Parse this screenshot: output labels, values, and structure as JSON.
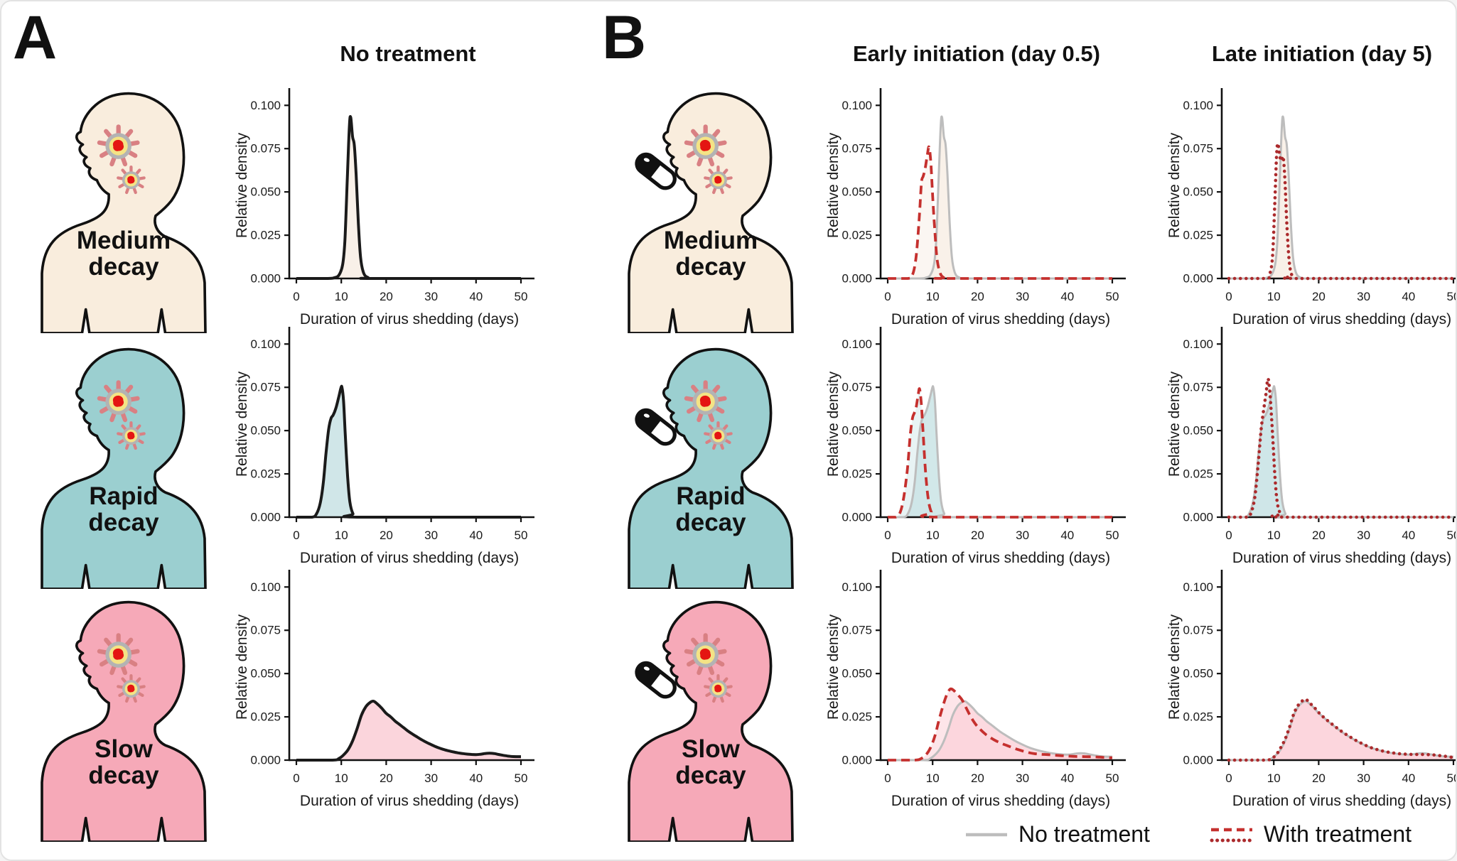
{
  "panels": {
    "a": {
      "label": "A",
      "column_title": "No treatment"
    },
    "b": {
      "label": "B",
      "column_titles": [
        "Early initiation (day 0.5)",
        "Late initiation (day 5)"
      ]
    }
  },
  "rows": [
    {
      "key": "medium",
      "label_line1": "Medium",
      "label_line2": "decay",
      "body_color": "#f9eddd",
      "chart_fill": "#f8efe7"
    },
    {
      "key": "rapid",
      "label_line1": "Rapid",
      "label_line2": "decay",
      "body_color": "#9bcfd0",
      "chart_fill": "#cde5e7"
    },
    {
      "key": "slow",
      "label_line1": "Slow",
      "label_line2": "decay",
      "body_color": "#f6a9b8",
      "chart_fill": "#fbd3da"
    }
  ],
  "legend": {
    "no_treatment": "No treatment",
    "with_treatment": "With treatment"
  },
  "colors": {
    "black": "#1a1a1a",
    "gray": "#bdbdbd",
    "red": "#c5302e",
    "red_dark": "#ab2a2c",
    "outline": "#111111"
  },
  "icons": {
    "virus": "virus-icon",
    "pill": "pill-capsule-icon",
    "colors": {
      "spike": "#d98083",
      "ring": "#b3b3b3",
      "capsid": "#f4e385",
      "core": "#e41512",
      "pill_dark": "#111111",
      "pill_light": "#ffffff"
    }
  },
  "chart_data": {
    "type": "area",
    "xlabel": "Duration of virus shedding (days)",
    "ylabel": "Relative density",
    "xlim": [
      0,
      50
    ],
    "ylim": [
      0,
      0.1
    ],
    "xtick_values": [
      0,
      10,
      20,
      30,
      40,
      50
    ],
    "xtick_labels": [
      "0",
      "10",
      "20",
      "30",
      "40",
      "50"
    ],
    "ytick_values": [
      0,
      0.025,
      0.05,
      0.075,
      0.1
    ],
    "ytick_labels": [
      "0.000",
      "0.025",
      "0.050",
      "0.075",
      "0.100"
    ],
    "grid": false,
    "legend_position": "bottom-right",
    "line_styles": {
      "black-solid": {
        "color": "#1a1a1a",
        "width": 4
      },
      "gray-solid": {
        "color": "#bdbdbd",
        "width": 3
      },
      "red-dashed": {
        "color": "#c5302e",
        "width": 3.8,
        "dash": "12 7"
      },
      "red-dotted": {
        "color": "#ab2a2c",
        "width": 4.6,
        "dash": "0.1 8",
        "cap": "round"
      }
    },
    "curves": {
      "medium_no_treatment": [
        [
          0,
          0
        ],
        [
          7,
          0
        ],
        [
          8.5,
          0.0005
        ],
        [
          9.5,
          0.002
        ],
        [
          10.3,
          0.008
        ],
        [
          10.8,
          0.022
        ],
        [
          11.3,
          0.055
        ],
        [
          11.8,
          0.088
        ],
        [
          12.1,
          0.093
        ],
        [
          12.5,
          0.082
        ],
        [
          12.9,
          0.077
        ],
        [
          13.3,
          0.06
        ],
        [
          13.8,
          0.032
        ],
        [
          14.3,
          0.012
        ],
        [
          15,
          0.003
        ],
        [
          16,
          0.0005
        ],
        [
          17,
          0
        ],
        [
          50,
          0
        ]
      ],
      "medium_early_treatment": [
        [
          0,
          0
        ],
        [
          4.5,
          0
        ],
        [
          5.5,
          0.002
        ],
        [
          6.3,
          0.012
        ],
        [
          7,
          0.034
        ],
        [
          7.5,
          0.055
        ],
        [
          7.9,
          0.059
        ],
        [
          8.3,
          0.063
        ],
        [
          8.8,
          0.071
        ],
        [
          9.2,
          0.076
        ],
        [
          9.6,
          0.067
        ],
        [
          10,
          0.048
        ],
        [
          10.5,
          0.027
        ],
        [
          11,
          0.011
        ],
        [
          11.7,
          0.003
        ],
        [
          12.5,
          0.0005
        ],
        [
          13.5,
          0
        ],
        [
          50,
          0
        ]
      ],
      "medium_late_treatment": [
        [
          0,
          0
        ],
        [
          8,
          0
        ],
        [
          9,
          0.002
        ],
        [
          9.7,
          0.012
        ],
        [
          10.2,
          0.042
        ],
        [
          10.6,
          0.07
        ],
        [
          10.9,
          0.078
        ],
        [
          11.3,
          0.071
        ],
        [
          11.7,
          0.068
        ],
        [
          12.1,
          0.07
        ],
        [
          12.5,
          0.056
        ],
        [
          12.9,
          0.032
        ],
        [
          13.4,
          0.011
        ],
        [
          14,
          0.002
        ],
        [
          15,
          0
        ],
        [
          50,
          0
        ]
      ],
      "rapid_no_treatment": [
        [
          0,
          0
        ],
        [
          3.5,
          0
        ],
        [
          4.5,
          0.002
        ],
        [
          5.3,
          0.008
        ],
        [
          6,
          0.02
        ],
        [
          6.6,
          0.037
        ],
        [
          7.2,
          0.051
        ],
        [
          7.7,
          0.057
        ],
        [
          8.2,
          0.059
        ],
        [
          8.8,
          0.063
        ],
        [
          9.4,
          0.069
        ],
        [
          9.9,
          0.0745
        ],
        [
          10.15,
          0.075
        ],
        [
          10.5,
          0.067
        ],
        [
          10.9,
          0.047
        ],
        [
          11.4,
          0.024
        ],
        [
          11.9,
          0.009
        ],
        [
          12.6,
          0.002
        ],
        [
          13.5,
          0
        ],
        [
          50,
          0
        ]
      ],
      "rapid_early_treatment": [
        [
          0,
          0
        ],
        [
          1.8,
          0
        ],
        [
          2.8,
          0.003
        ],
        [
          3.6,
          0.012
        ],
        [
          4.4,
          0.028
        ],
        [
          5,
          0.047
        ],
        [
          5.5,
          0.057
        ],
        [
          5.9,
          0.06
        ],
        [
          6.3,
          0.063
        ],
        [
          6.8,
          0.071
        ],
        [
          7.1,
          0.074
        ],
        [
          7.5,
          0.065
        ],
        [
          7.9,
          0.048
        ],
        [
          8.4,
          0.027
        ],
        [
          9,
          0.011
        ],
        [
          9.7,
          0.003
        ],
        [
          10.7,
          0
        ],
        [
          50,
          0
        ]
      ],
      "rapid_late_treatment": [
        [
          0,
          0
        ],
        [
          4,
          0
        ],
        [
          5,
          0.003
        ],
        [
          5.8,
          0.012
        ],
        [
          6.5,
          0.03
        ],
        [
          7.2,
          0.051
        ],
        [
          7.8,
          0.063
        ],
        [
          8.3,
          0.072
        ],
        [
          8.7,
          0.08
        ],
        [
          9.1,
          0.073
        ],
        [
          9.5,
          0.058
        ],
        [
          9.9,
          0.04
        ],
        [
          10.3,
          0.022
        ],
        [
          10.8,
          0.008
        ],
        [
          11.5,
          0.002
        ],
        [
          12.5,
          0
        ],
        [
          50,
          0
        ]
      ],
      "slow_no_treatment": [
        [
          0,
          0
        ],
        [
          8,
          0
        ],
        [
          9.5,
          0.001
        ],
        [
          10.5,
          0.003
        ],
        [
          11.5,
          0.006
        ],
        [
          12.5,
          0.011
        ],
        [
          13.5,
          0.018
        ],
        [
          14.5,
          0.026
        ],
        [
          15.5,
          0.031
        ],
        [
          16.5,
          0.0335
        ],
        [
          17.2,
          0.034
        ],
        [
          18,
          0.0325
        ],
        [
          19,
          0.03
        ],
        [
          20,
          0.027
        ],
        [
          21,
          0.025
        ],
        [
          22,
          0.0225
        ],
        [
          23,
          0.0205
        ],
        [
          24,
          0.0185
        ],
        [
          25,
          0.0165
        ],
        [
          26,
          0.0148
        ],
        [
          27,
          0.0132
        ],
        [
          28,
          0.0116
        ],
        [
          29,
          0.0102
        ],
        [
          30,
          0.009
        ],
        [
          31,
          0.0078
        ],
        [
          32,
          0.0068
        ],
        [
          33,
          0.006
        ],
        [
          34,
          0.0053
        ],
        [
          35,
          0.0047
        ],
        [
          36,
          0.0042
        ],
        [
          37,
          0.0038
        ],
        [
          38,
          0.0035
        ],
        [
          39,
          0.0033
        ],
        [
          40,
          0.0032
        ],
        [
          41,
          0.0034
        ],
        [
          42,
          0.0038
        ],
        [
          43,
          0.004
        ],
        [
          44,
          0.0038
        ],
        [
          45,
          0.0033
        ],
        [
          46,
          0.0028
        ],
        [
          47,
          0.0024
        ],
        [
          48,
          0.0021
        ],
        [
          49,
          0.002
        ],
        [
          50,
          0.002
        ]
      ],
      "slow_early_treatment": [
        [
          0,
          0
        ],
        [
          6,
          0
        ],
        [
          7.5,
          0.001
        ],
        [
          8.5,
          0.003
        ],
        [
          9.5,
          0.007
        ],
        [
          10.5,
          0.014
        ],
        [
          11.5,
          0.024
        ],
        [
          12.5,
          0.033
        ],
        [
          13.2,
          0.038
        ],
        [
          13.9,
          0.041
        ],
        [
          14.6,
          0.0405
        ],
        [
          15.5,
          0.038
        ],
        [
          16.5,
          0.035
        ],
        [
          17.5,
          0.03
        ],
        [
          18.5,
          0.025
        ],
        [
          19.5,
          0.021
        ],
        [
          20.5,
          0.018
        ],
        [
          22,
          0.0145
        ],
        [
          23.5,
          0.012
        ],
        [
          25,
          0.01
        ],
        [
          26.5,
          0.0085
        ],
        [
          28,
          0.007
        ],
        [
          29.5,
          0.0057
        ],
        [
          31,
          0.0046
        ],
        [
          32.5,
          0.0038
        ],
        [
          34,
          0.0034
        ],
        [
          35.5,
          0.0032
        ],
        [
          37,
          0.0029
        ],
        [
          38.5,
          0.0026
        ],
        [
          40,
          0.0024
        ],
        [
          42,
          0.0021
        ],
        [
          44,
          0.002
        ],
        [
          46,
          0.0019
        ],
        [
          48,
          0.0016
        ],
        [
          50,
          0.0013
        ]
      ],
      "slow_late_treatment": [
        [
          0,
          0
        ],
        [
          8,
          0
        ],
        [
          9.5,
          0.001
        ],
        [
          10.5,
          0.003
        ],
        [
          11.5,
          0.007
        ],
        [
          12.5,
          0.012
        ],
        [
          13.5,
          0.019
        ],
        [
          14.5,
          0.027
        ],
        [
          15.5,
          0.032
        ],
        [
          16.5,
          0.0345
        ],
        [
          17.2,
          0.035
        ],
        [
          18,
          0.033
        ],
        [
          19,
          0.0305
        ],
        [
          20,
          0.0275
        ],
        [
          21,
          0.025
        ],
        [
          22,
          0.0228
        ],
        [
          23,
          0.0207
        ],
        [
          24,
          0.0187
        ],
        [
          25,
          0.0168
        ],
        [
          26,
          0.015
        ],
        [
          27,
          0.0134
        ],
        [
          28,
          0.0118
        ],
        [
          29,
          0.0104
        ],
        [
          30,
          0.0091
        ],
        [
          31,
          0.0079
        ],
        [
          32,
          0.0069
        ],
        [
          33,
          0.0061
        ],
        [
          34,
          0.0054
        ],
        [
          35,
          0.0048
        ],
        [
          36,
          0.0044
        ],
        [
          37,
          0.004
        ],
        [
          38,
          0.0037
        ],
        [
          39,
          0.0035
        ],
        [
          40,
          0.0034
        ],
        [
          41,
          0.0033
        ],
        [
          42,
          0.0033
        ],
        [
          43,
          0.0033
        ],
        [
          44,
          0.0032
        ],
        [
          45,
          0.0031
        ],
        [
          46,
          0.0029
        ],
        [
          47,
          0.0026
        ],
        [
          48,
          0.0023
        ],
        [
          49,
          0.0019
        ],
        [
          50,
          0.0015
        ]
      ]
    },
    "charts": [
      {
        "id": "medium-none",
        "panel": "A",
        "row": "Medium decay",
        "column": "No treatment",
        "series": [
          {
            "name": "No treatment",
            "curve": "medium_no_treatment",
            "style": "black-solid",
            "fill": "#f8efe7",
            "fill_opacity": 0.95
          }
        ]
      },
      {
        "id": "rapid-none",
        "panel": "A",
        "row": "Rapid decay",
        "column": "No treatment",
        "series": [
          {
            "name": "No treatment",
            "curve": "rapid_no_treatment",
            "style": "black-solid",
            "fill": "#cde5e7",
            "fill_opacity": 0.95
          }
        ]
      },
      {
        "id": "slow-none",
        "panel": "A",
        "row": "Slow decay",
        "column": "No treatment",
        "series": [
          {
            "name": "No treatment",
            "curve": "slow_no_treatment",
            "style": "black-solid",
            "fill": "#fbd3da",
            "fill_opacity": 0.95
          }
        ]
      },
      {
        "id": "medium-early",
        "panel": "B",
        "row": "Medium decay",
        "column": "Early initiation (day 0.5)",
        "series": [
          {
            "name": "No treatment",
            "curve": "medium_no_treatment",
            "style": "gray-solid",
            "fill": "#f8efe7",
            "fill_opacity": 0.9
          },
          {
            "name": "With treatment",
            "curve": "medium_early_treatment",
            "style": "red-dashed",
            "fill": "#f8efe7",
            "fill_opacity": 0.55
          }
        ]
      },
      {
        "id": "medium-late",
        "panel": "B",
        "row": "Medium decay",
        "column": "Late initiation (day 5)",
        "series": [
          {
            "name": "No treatment",
            "curve": "medium_no_treatment",
            "style": "gray-solid",
            "fill": "#f8efe7",
            "fill_opacity": 0.9
          },
          {
            "name": "With treatment",
            "curve": "medium_late_treatment",
            "style": "red-dotted",
            "fill": "#f8efe7",
            "fill_opacity": 0.55
          }
        ]
      },
      {
        "id": "rapid-early",
        "panel": "B",
        "row": "Rapid decay",
        "column": "Early initiation (day 0.5)",
        "series": [
          {
            "name": "No treatment",
            "curve": "rapid_no_treatment",
            "style": "gray-solid",
            "fill": "#cde5e7",
            "fill_opacity": 0.9
          },
          {
            "name": "With treatment",
            "curve": "rapid_early_treatment",
            "style": "red-dashed",
            "fill": "#cde5e7",
            "fill_opacity": 0.45
          }
        ]
      },
      {
        "id": "rapid-late",
        "panel": "B",
        "row": "Rapid decay",
        "column": "Late initiation (day 5)",
        "series": [
          {
            "name": "No treatment",
            "curve": "rapid_no_treatment",
            "style": "gray-solid",
            "fill": "#cde5e7",
            "fill_opacity": 0.9
          },
          {
            "name": "With treatment",
            "curve": "rapid_late_treatment",
            "style": "red-dotted",
            "fill": "#cde5e7",
            "fill_opacity": 0.45
          }
        ]
      },
      {
        "id": "slow-early",
        "panel": "B",
        "row": "Slow decay",
        "column": "Early initiation (day 0.5)",
        "series": [
          {
            "name": "No treatment",
            "curve": "slow_no_treatment",
            "style": "gray-solid",
            "fill": "#fbd3da",
            "fill_opacity": 0.85
          },
          {
            "name": "With treatment",
            "curve": "slow_early_treatment",
            "style": "red-dashed",
            "fill": "#fbd3da",
            "fill_opacity": 0.6
          }
        ]
      },
      {
        "id": "slow-late",
        "panel": "B",
        "row": "Slow decay",
        "column": "Late initiation (day 5)",
        "series": [
          {
            "name": "No treatment",
            "curve": "slow_no_treatment",
            "style": "gray-solid",
            "fill": "#fbd3da",
            "fill_opacity": 0.85
          },
          {
            "name": "With treatment",
            "curve": "slow_late_treatment",
            "style": "red-dotted",
            "fill": "#fbd3da",
            "fill_opacity": 0.6
          }
        ]
      }
    ]
  }
}
